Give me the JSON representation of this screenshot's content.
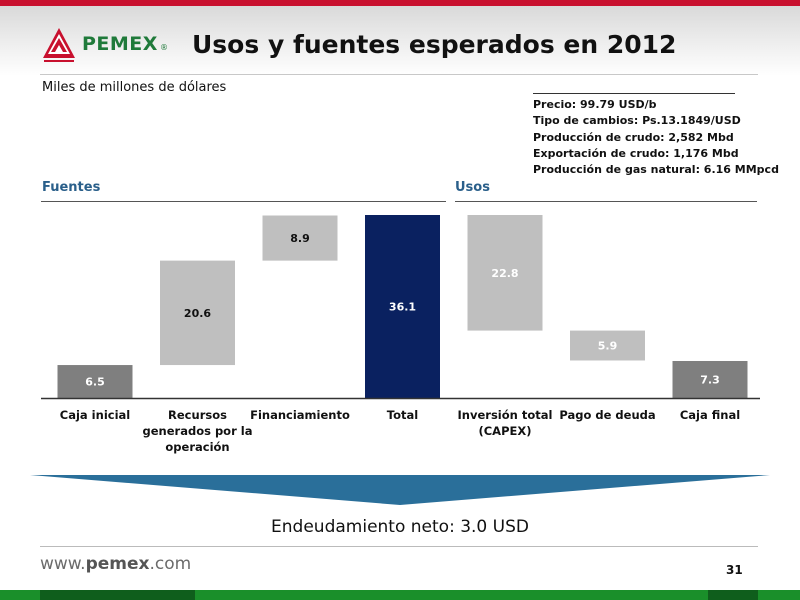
{
  "header": {
    "logo_text": "PEMEX",
    "logo_reg": "®",
    "title": "Usos y fuentes esperados en 2012"
  },
  "subtitle": "Miles de millones de dólares",
  "assumptions": [
    "Precio: 99.79 USD/b",
    "Tipo de cambios: Ps.13.1849/USD",
    "Producción de crudo: 2,582 Mbd",
    "Exportación de crudo: 1,176 Mbd",
    "Producción de gas natural: 6.16 MMpcd"
  ],
  "sections": {
    "fuentes": "Fuentes",
    "usos": "Usos"
  },
  "chart_data": {
    "type": "bar",
    "subtype": "waterfall",
    "title": "",
    "ylabel": "",
    "unit": "Miles de millones de dólares",
    "ylim": [
      0,
      36.1
    ],
    "categories": [
      "Caja inicial",
      "Recursos generados por la operación",
      "Financiamiento",
      "Total",
      "Inversión total (CAPEX)",
      "Pago de deuda",
      "Caja final"
    ],
    "category_lines": [
      [
        "Caja inicial"
      ],
      [
        "Recursos",
        "generados por la",
        "operación"
      ],
      [
        "Financiamiento"
      ],
      [
        "Total"
      ],
      [
        "Inversión total",
        "(CAPEX)"
      ],
      [
        "Pago de deuda"
      ],
      [
        "Caja final"
      ]
    ],
    "values": [
      6.5,
      20.6,
      8.9,
      36.1,
      22.8,
      5.9,
      7.3
    ],
    "value_labels": [
      "6.5",
      "20.6",
      "8.9",
      "36.1",
      "22.8",
      "5.9",
      "7.3"
    ],
    "bar_types": [
      "base",
      "increase",
      "increase",
      "total",
      "decrease",
      "decrease",
      "result"
    ],
    "colors": {
      "base": "#7f7f7f",
      "increase": "#bfbfbf",
      "total": "#0a2160",
      "decrease": "#bfbfbf",
      "result": "#7f7f7f"
    },
    "label_colors": {
      "base": "#ffffff",
      "increase": "#111111",
      "total": "#ffffff",
      "decrease": "#ffffff",
      "result": "#ffffff"
    },
    "grid": false,
    "legend": "none"
  },
  "banner": {
    "color": "#2a6f9a",
    "text": "Endeudamiento neto: 3.0 USD"
  },
  "footer": {
    "url_prefix": "www.",
    "url_brand": "pemex",
    "url_suffix": ".com",
    "page_number": "31"
  },
  "colors": {
    "top_bar": "#c8102e",
    "bottom_bar": "#1a8f2a",
    "section_label": "#2a5f8a",
    "logo_green": "#1f7a3a",
    "logo_red": "#c8102e"
  }
}
